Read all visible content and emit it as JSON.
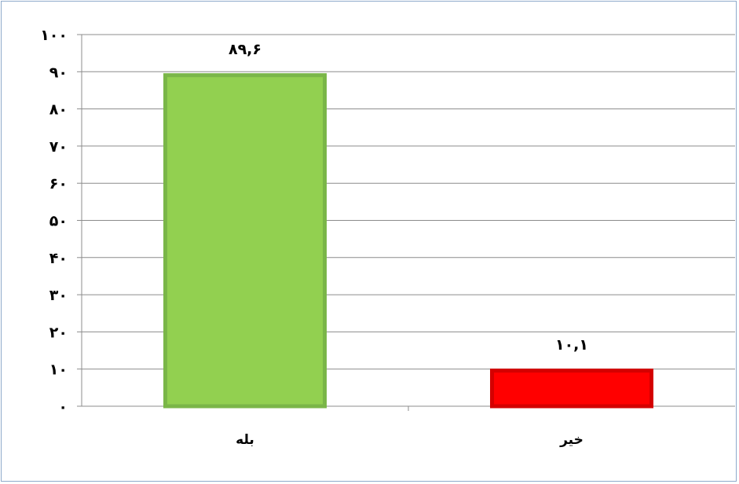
{
  "chart_data": {
    "type": "bar",
    "categories": [
      "بله",
      "خیر"
    ],
    "values": [
      89.6,
      10.1
    ],
    "data_labels": [
      "۸۹,۶",
      "۱۰,۱"
    ],
    "yticks": [
      0,
      10,
      20,
      30,
      40,
      50,
      60,
      70,
      80,
      90,
      100
    ],
    "ytick_labels": [
      "۰",
      "۱۰",
      "۲۰",
      "۳۰",
      "۴۰",
      "۵۰",
      "۶۰",
      "۷۰",
      "۸۰",
      "۹۰",
      "۱۰۰"
    ],
    "ylim": [
      0,
      100
    ],
    "title": "",
    "xlabel": "",
    "ylabel": "",
    "grid": true,
    "legend": "none",
    "bar_fills": [
      "#92d050",
      "#ff0000"
    ],
    "bar_borders": [
      "#7ab648",
      "#d40000"
    ],
    "gridline_color": "#8c8c8c"
  }
}
